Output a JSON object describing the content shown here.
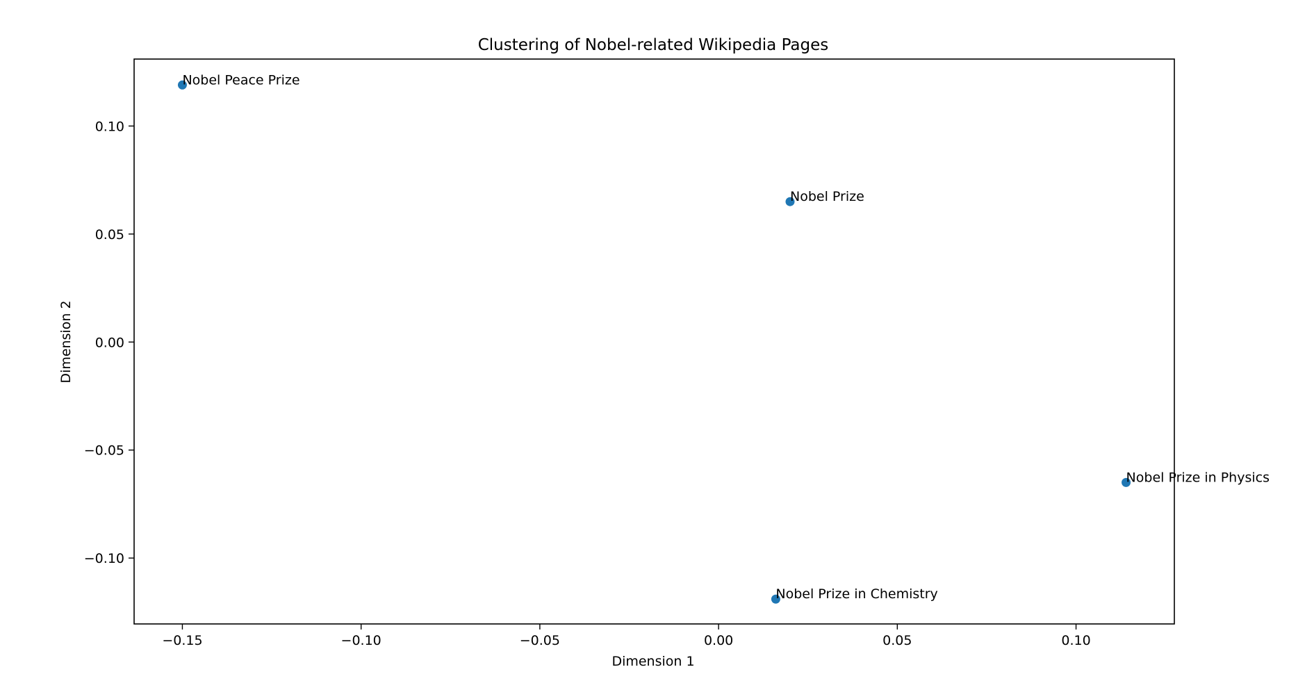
{
  "chart_data": {
    "type": "scatter",
    "title": "Clustering of Nobel-related Wikipedia Pages",
    "xlabel": "Dimension 1",
    "ylabel": "Dimension 2",
    "xlim": [
      -0.1635,
      0.1275
    ],
    "ylim": [
      -0.1305,
      0.131
    ],
    "grid": false,
    "marker_color": "#1f77b4",
    "x_ticks": [
      -0.15,
      -0.1,
      -0.05,
      0.0,
      0.05,
      0.1
    ],
    "x_tick_labels": [
      "−0.15",
      "−0.10",
      "−0.05",
      "0.00",
      "0.05",
      "0.10"
    ],
    "y_ticks": [
      -0.1,
      -0.05,
      0.0,
      0.05,
      0.1
    ],
    "y_tick_labels": [
      "−0.10",
      "−0.05",
      "0.00",
      "0.05",
      "0.10"
    ],
    "points": [
      {
        "label": "Nobel Peace Prize",
        "x": -0.15,
        "y": 0.119
      },
      {
        "label": "Nobel Prize",
        "x": 0.02,
        "y": 0.065
      },
      {
        "label": "Nobel Prize in Physics",
        "x": 0.114,
        "y": -0.065
      },
      {
        "label": "Nobel Prize in Chemistry",
        "x": 0.016,
        "y": -0.119
      }
    ]
  }
}
